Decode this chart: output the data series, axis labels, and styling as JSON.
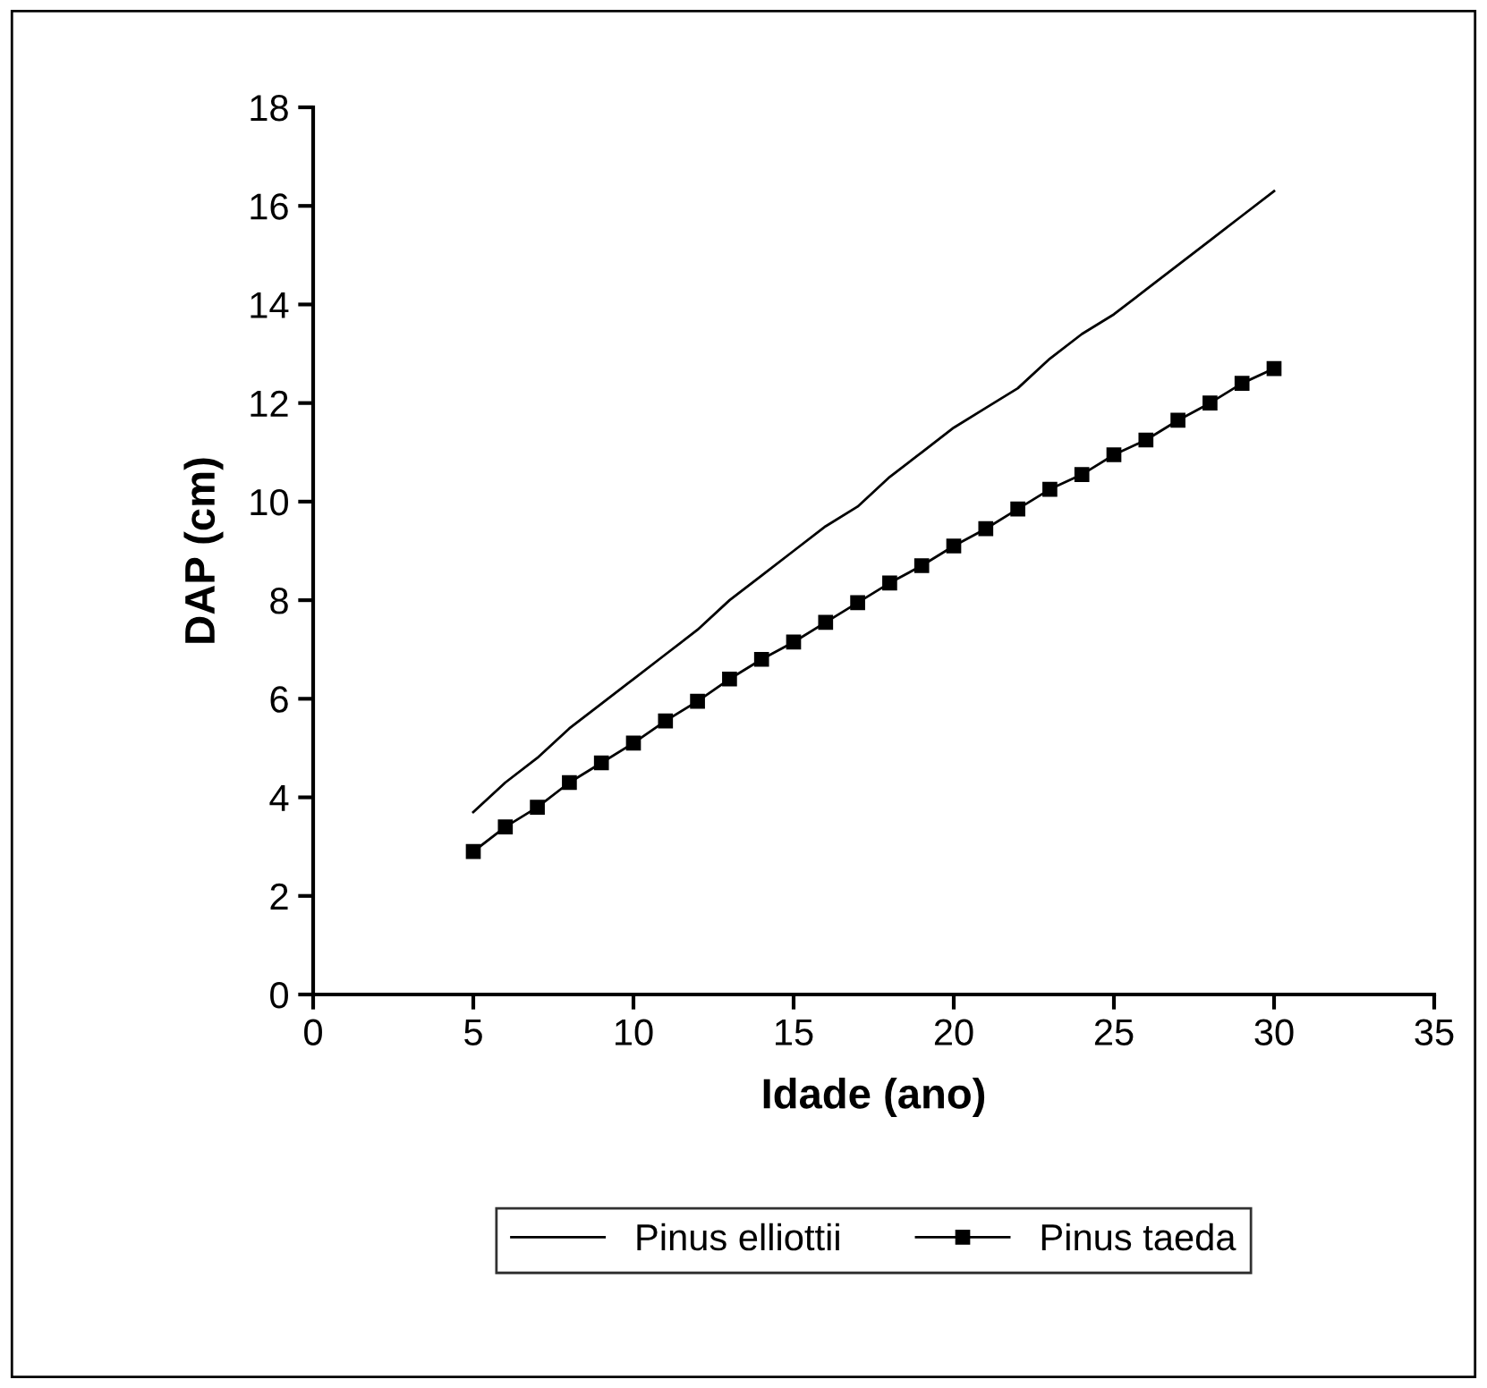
{
  "chart_data": {
    "type": "line",
    "xlabel": "Idade (ano)",
    "ylabel": "DAP (cm)",
    "x": [
      5,
      6,
      7,
      8,
      9,
      10,
      11,
      12,
      13,
      14,
      15,
      16,
      17,
      18,
      19,
      20,
      21,
      22,
      23,
      24,
      25,
      26,
      27,
      28,
      29,
      30
    ],
    "series": [
      {
        "name": "Pinus elliottii",
        "color": "#000000",
        "marker": "none",
        "values": [
          3.7,
          4.3,
          4.8,
          5.4,
          5.9,
          6.4,
          6.9,
          7.4,
          8.0,
          8.5,
          9.0,
          9.5,
          9.9,
          10.5,
          11.0,
          11.5,
          11.9,
          12.3,
          12.9,
          13.4,
          13.8,
          14.3,
          14.8,
          15.3,
          15.8,
          16.3
        ]
      },
      {
        "name": "Pinus taeda",
        "color": "#000000",
        "marker": "square",
        "values": [
          2.9,
          3.4,
          3.8,
          4.3,
          4.7,
          5.1,
          5.55,
          5.95,
          6.4,
          6.8,
          7.15,
          7.55,
          7.95,
          8.35,
          8.7,
          9.1,
          9.45,
          9.85,
          10.25,
          10.55,
          10.95,
          11.25,
          11.65,
          12.0,
          12.4,
          12.7
        ]
      }
    ],
    "xlim": [
      0,
      35
    ],
    "xticks": [
      0,
      5,
      10,
      15,
      20,
      25,
      30,
      35
    ],
    "ylim": [
      0,
      18
    ],
    "yticks": [
      0,
      2,
      4,
      6,
      8,
      10,
      12,
      14,
      16,
      18
    ],
    "grid": false,
    "legend": "bottom"
  }
}
